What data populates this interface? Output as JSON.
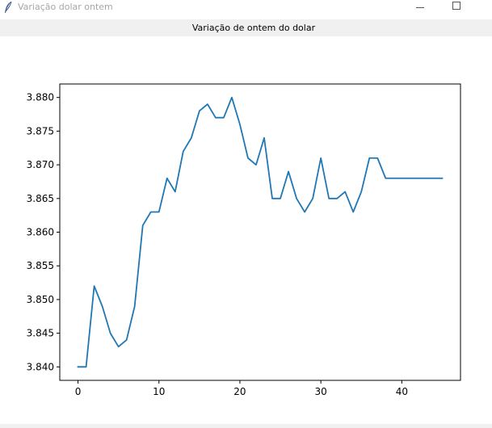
{
  "window": {
    "title": "Variação dolar ontem",
    "title_color": "#a6a6a6"
  },
  "label": {
    "text": "Variação de ontem do dolar"
  },
  "icons": {
    "app": "feather-icon",
    "minimize": "minimize-icon",
    "maximize": "maximize-icon"
  },
  "chart_data": {
    "type": "line",
    "title": "",
    "xlabel": "",
    "ylabel": "",
    "xlim": [
      -2.25,
      47.25
    ],
    "ylim": [
      3.838,
      3.882
    ],
    "xticks": [
      0,
      10,
      20,
      30,
      40
    ],
    "yticks": [
      3.84,
      3.845,
      3.85,
      3.855,
      3.86,
      3.865,
      3.87,
      3.875,
      3.88
    ],
    "ytick_labels": [
      "3.840",
      "3.845",
      "3.850",
      "3.855",
      "3.860",
      "3.865",
      "3.870",
      "3.875",
      "3.880"
    ],
    "grid": false,
    "color": "#1f77b4",
    "x": [
      0,
      1,
      2,
      3,
      4,
      5,
      6,
      7,
      8,
      9,
      10,
      11,
      12,
      13,
      14,
      15,
      16,
      17,
      18,
      19,
      20,
      21,
      22,
      23,
      24,
      25,
      26,
      27,
      28,
      29,
      30,
      31,
      32,
      33,
      34,
      35,
      36,
      37,
      38,
      39,
      40,
      41,
      42,
      43,
      44,
      45
    ],
    "y": [
      3.84,
      3.84,
      3.852,
      3.849,
      3.845,
      3.843,
      3.844,
      3.849,
      3.861,
      3.863,
      3.863,
      3.868,
      3.866,
      3.872,
      3.874,
      3.878,
      3.879,
      3.877,
      3.877,
      3.88,
      3.876,
      3.871,
      3.87,
      3.874,
      3.865,
      3.865,
      3.869,
      3.865,
      3.863,
      3.865,
      3.871,
      3.865,
      3.865,
      3.866,
      3.863,
      3.866,
      3.871,
      3.871,
      3.868,
      3.868,
      3.868,
      3.868,
      3.868,
      3.868,
      3.868,
      3.868
    ]
  }
}
